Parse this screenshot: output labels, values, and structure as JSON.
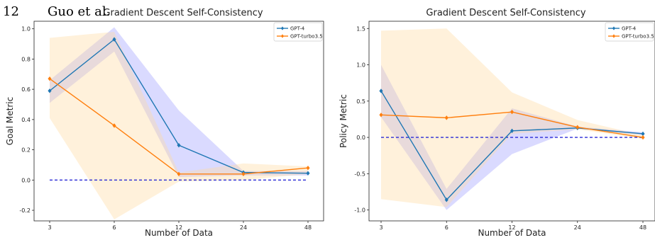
{
  "page_header": {
    "page_number": "12",
    "author": "Guo et al."
  },
  "chart_data": [
    {
      "type": "line",
      "title": "Gradient Descent Self-Consistency",
      "xlabel": "Number of Data",
      "ylabel": "Goal Metric",
      "categories": [
        "3",
        "6",
        "12",
        "24",
        "48"
      ],
      "ylim": [
        -0.27,
        1.05
      ],
      "yticks": [
        "-0.2",
        "0.0",
        "0.2",
        "0.4",
        "0.6",
        "0.8",
        "1.0"
      ],
      "ytick_values": [
        -0.2,
        0.0,
        0.2,
        0.4,
        0.6,
        0.8,
        1.0
      ],
      "reference_line": 0.0,
      "grid": false,
      "legend_position": "top-right",
      "series": [
        {
          "name": "GPT-4",
          "color": "#1f77b4",
          "values": [
            0.59,
            0.93,
            0.23,
            0.05,
            0.045
          ],
          "band_lower": [
            0.51,
            0.85,
            0.02,
            0.03,
            0.03
          ],
          "band_upper": [
            0.66,
            1.01,
            0.46,
            0.06,
            0.06
          ]
        },
        {
          "name": "GPT-turbo3.5",
          "color": "#ff7f0e",
          "values": [
            0.67,
            0.36,
            0.04,
            0.04,
            0.08
          ],
          "band_lower": [
            0.41,
            -0.26,
            -0.01,
            0.0,
            0.04
          ],
          "band_upper": [
            0.94,
            0.98,
            0.05,
            0.11,
            0.09
          ]
        }
      ]
    },
    {
      "type": "line",
      "title": "Gradient Descent Self-Consistency",
      "xlabel": "Number of Data",
      "ylabel": "Policy Metric",
      "categories": [
        "3",
        "6",
        "12",
        "24",
        "48"
      ],
      "ylim": [
        -1.15,
        1.6
      ],
      "yticks": [
        "-1.0",
        "-0.5",
        "0.0",
        "0.5",
        "1.0",
        "1.5"
      ],
      "ytick_values": [
        -1.0,
        -0.5,
        0.0,
        0.5,
        1.0,
        1.5
      ],
      "reference_line": 0.0,
      "grid": false,
      "legend_position": "top-right",
      "series": [
        {
          "name": "GPT-4",
          "color": "#1f77b4",
          "values": [
            0.64,
            -0.86,
            0.09,
            0.13,
            0.05
          ],
          "band_lower": [
            0.28,
            -1.0,
            -0.23,
            0.12,
            0.03
          ],
          "band_upper": [
            1.0,
            -0.71,
            0.4,
            0.15,
            0.07
          ]
        },
        {
          "name": "GPT-turbo3.5",
          "color": "#ff7f0e",
          "values": [
            0.31,
            0.27,
            0.35,
            0.14,
            0.0
          ],
          "band_lower": [
            -0.85,
            -0.96,
            0.05,
            0.11,
            -0.02
          ],
          "band_upper": [
            1.47,
            1.5,
            0.62,
            0.24,
            0.03
          ]
        }
      ]
    }
  ]
}
